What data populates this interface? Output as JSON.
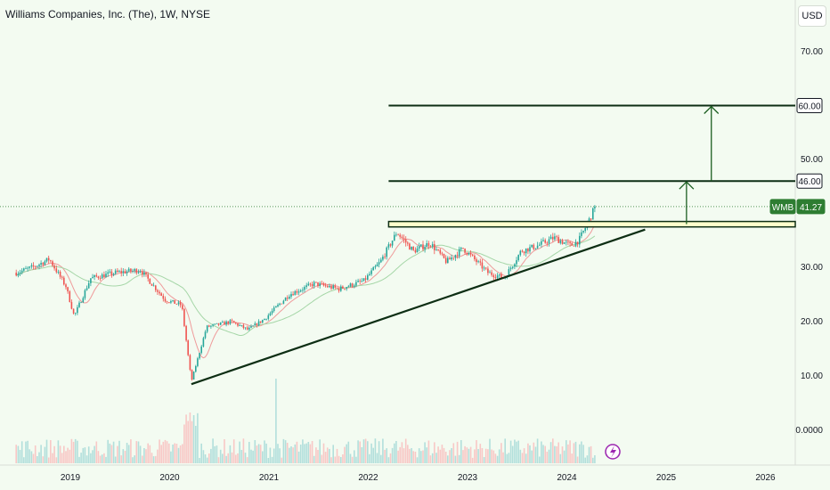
{
  "header": {
    "title": "Williams Companies, Inc. (The), 1W, NYSE",
    "currency_button": "USD"
  },
  "price_axis": {
    "ticks": [
      "70.00",
      "50.00",
      "30.00",
      "20.00",
      "10.00",
      "0.0000"
    ],
    "tick_values": [
      70,
      50,
      30,
      20,
      10,
      0
    ]
  },
  "time_axis": {
    "labels": [
      "2019",
      "2020",
      "2021",
      "2022",
      "2023",
      "2024",
      "2025",
      "2026"
    ]
  },
  "tags": {
    "level_60": "60.00",
    "level_46": "46.00",
    "symbol": "WMB",
    "last_price": "41.27"
  },
  "colors": {
    "background": "#f3fbf1",
    "up": "#26a69a",
    "down": "#ef5350",
    "annotation": "#0d2e14",
    "arrow": "#1b5e20",
    "price_tag": "#2e7d32",
    "ma_fast": "#ef9a9a",
    "ma_slow": "#a5d6a7"
  },
  "icons": {
    "indicator": "lightning-icon"
  },
  "chart_data": {
    "type": "candlestick",
    "title": "Williams Companies, Inc. (The), 1W, NYSE",
    "interval": "1W",
    "exchange": "NYSE",
    "currency": "USD",
    "x_range": [
      "2018-06",
      "2026-06"
    ],
    "y_ticks": [
      0,
      10,
      20,
      30,
      50,
      70
    ],
    "last_price": 41.27,
    "price_path": [
      {
        "date": "2018-06",
        "price": 29
      },
      {
        "date": "2018-08",
        "price": 30
      },
      {
        "date": "2018-10",
        "price": 31.5
      },
      {
        "date": "2018-12",
        "price": 26.5
      },
      {
        "date": "2019-01",
        "price": 21
      },
      {
        "date": "2019-03",
        "price": 28
      },
      {
        "date": "2019-06",
        "price": 29
      },
      {
        "date": "2019-09",
        "price": 29.5
      },
      {
        "date": "2019-12",
        "price": 24
      },
      {
        "date": "2020-02",
        "price": 23
      },
      {
        "date": "2020-03-20",
        "price": 9
      },
      {
        "date": "2020-05",
        "price": 19
      },
      {
        "date": "2020-08",
        "price": 20
      },
      {
        "date": "2020-10",
        "price": 18.5
      },
      {
        "date": "2020-12",
        "price": 20.5
      },
      {
        "date": "2021-03",
        "price": 25
      },
      {
        "date": "2021-06",
        "price": 27
      },
      {
        "date": "2021-09",
        "price": 26
      },
      {
        "date": "2021-12",
        "price": 27.5
      },
      {
        "date": "2022-02",
        "price": 31
      },
      {
        "date": "2022-04",
        "price": 36.5
      },
      {
        "date": "2022-06",
        "price": 33
      },
      {
        "date": "2022-08",
        "price": 34.5
      },
      {
        "date": "2022-10",
        "price": 31
      },
      {
        "date": "2022-12",
        "price": 33.5
      },
      {
        "date": "2023-03",
        "price": 29
      },
      {
        "date": "2023-05",
        "price": 28
      },
      {
        "date": "2023-07",
        "price": 33
      },
      {
        "date": "2023-09",
        "price": 34
      },
      {
        "date": "2023-11",
        "price": 35.5
      },
      {
        "date": "2024-01",
        "price": 34
      },
      {
        "date": "2024-02",
        "price": 35
      },
      {
        "date": "2024-03",
        "price": 38
      },
      {
        "date": "2024-04",
        "price": 41.27
      }
    ],
    "annotations": {
      "resistance_zone": [
        37.5,
        38.5
      ],
      "target_levels": [
        46,
        60
      ],
      "trendline": {
        "start": {
          "date": "2020-03-20",
          "price": 8.5
        },
        "end": {
          "date": "2024-10",
          "price": 37
        }
      },
      "arrows": [
        {
          "date": "2025-03",
          "from": 38,
          "to": 46
        },
        {
          "date": "2025-06",
          "from": 46,
          "to": 60
        }
      ]
    },
    "moving_averages": [
      "fast",
      "slow"
    ]
  }
}
